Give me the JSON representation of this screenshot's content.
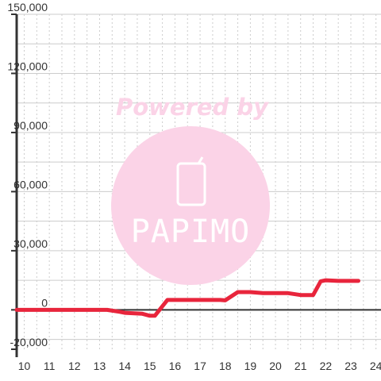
{
  "chart_data": {
    "type": "line",
    "x": [
      9.7,
      10,
      11,
      12,
      13,
      13.3,
      13.8,
      14,
      14.7,
      15,
      15.2,
      15.7,
      16,
      17,
      17.8,
      18,
      18.5,
      19,
      19.5,
      20,
      20.5,
      21,
      21.5,
      21.8,
      22,
      22.5,
      23,
      23.3
    ],
    "values": [
      0,
      0,
      0,
      0,
      0,
      0,
      -1000,
      -1500,
      -2000,
      -3000,
      -3000,
      5000,
      5000,
      5000,
      5000,
      4800,
      9000,
      9000,
      8500,
      8500,
      8500,
      7500,
      7500,
      14500,
      15000,
      14700,
      14700,
      14700
    ],
    "xlim": [
      9.7,
      24.2
    ],
    "ylim": [
      -20000,
      150000
    ],
    "yticks": [
      -20000,
      0,
      30000,
      60000,
      90000,
      120000,
      150000
    ],
    "ytick_labels": [
      "-20,000",
      "0",
      "30,000",
      "60,000",
      "90,000",
      "120,000",
      "150,000"
    ],
    "xticks": [
      10,
      11,
      12,
      13,
      14,
      15,
      16,
      17,
      18,
      19,
      20,
      21,
      22,
      23,
      24
    ],
    "xtick_labels": [
      "10",
      "11",
      "12",
      "13",
      "14",
      "15",
      "16",
      "17",
      "18",
      "19",
      "20",
      "21",
      "22",
      "23",
      "24"
    ],
    "grid": true,
    "series_color": "#e8253c",
    "grid_color": "#cccccc"
  },
  "watermark": {
    "text": "Powered by",
    "logo_text": "PAPIMO",
    "color": "#fbd3e7"
  }
}
